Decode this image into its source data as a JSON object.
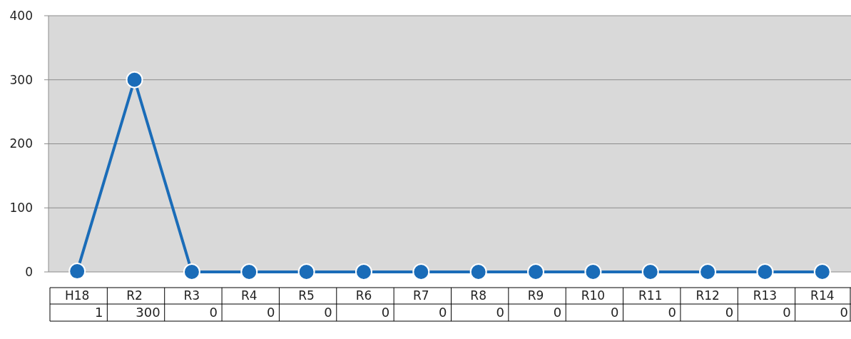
{
  "chart_data": {
    "type": "line",
    "categories": [
      "H18",
      "R2",
      "R3",
      "R4",
      "R5",
      "R6",
      "R7",
      "R8",
      "R9",
      "R10",
      "R11",
      "R12",
      "R13",
      "R14"
    ],
    "series": [
      {
        "color": "#1a6cb8",
        "values": [
          1,
          300,
          0,
          0,
          0,
          0,
          0,
          0,
          0,
          0,
          0,
          0,
          0,
          0
        ]
      }
    ],
    "ylim": [
      0,
      400
    ],
    "yticks": [
      0,
      100,
      200,
      300,
      400
    ],
    "grid": "y",
    "marker": "circle",
    "line_style": "solid",
    "data_labels": true
  }
}
